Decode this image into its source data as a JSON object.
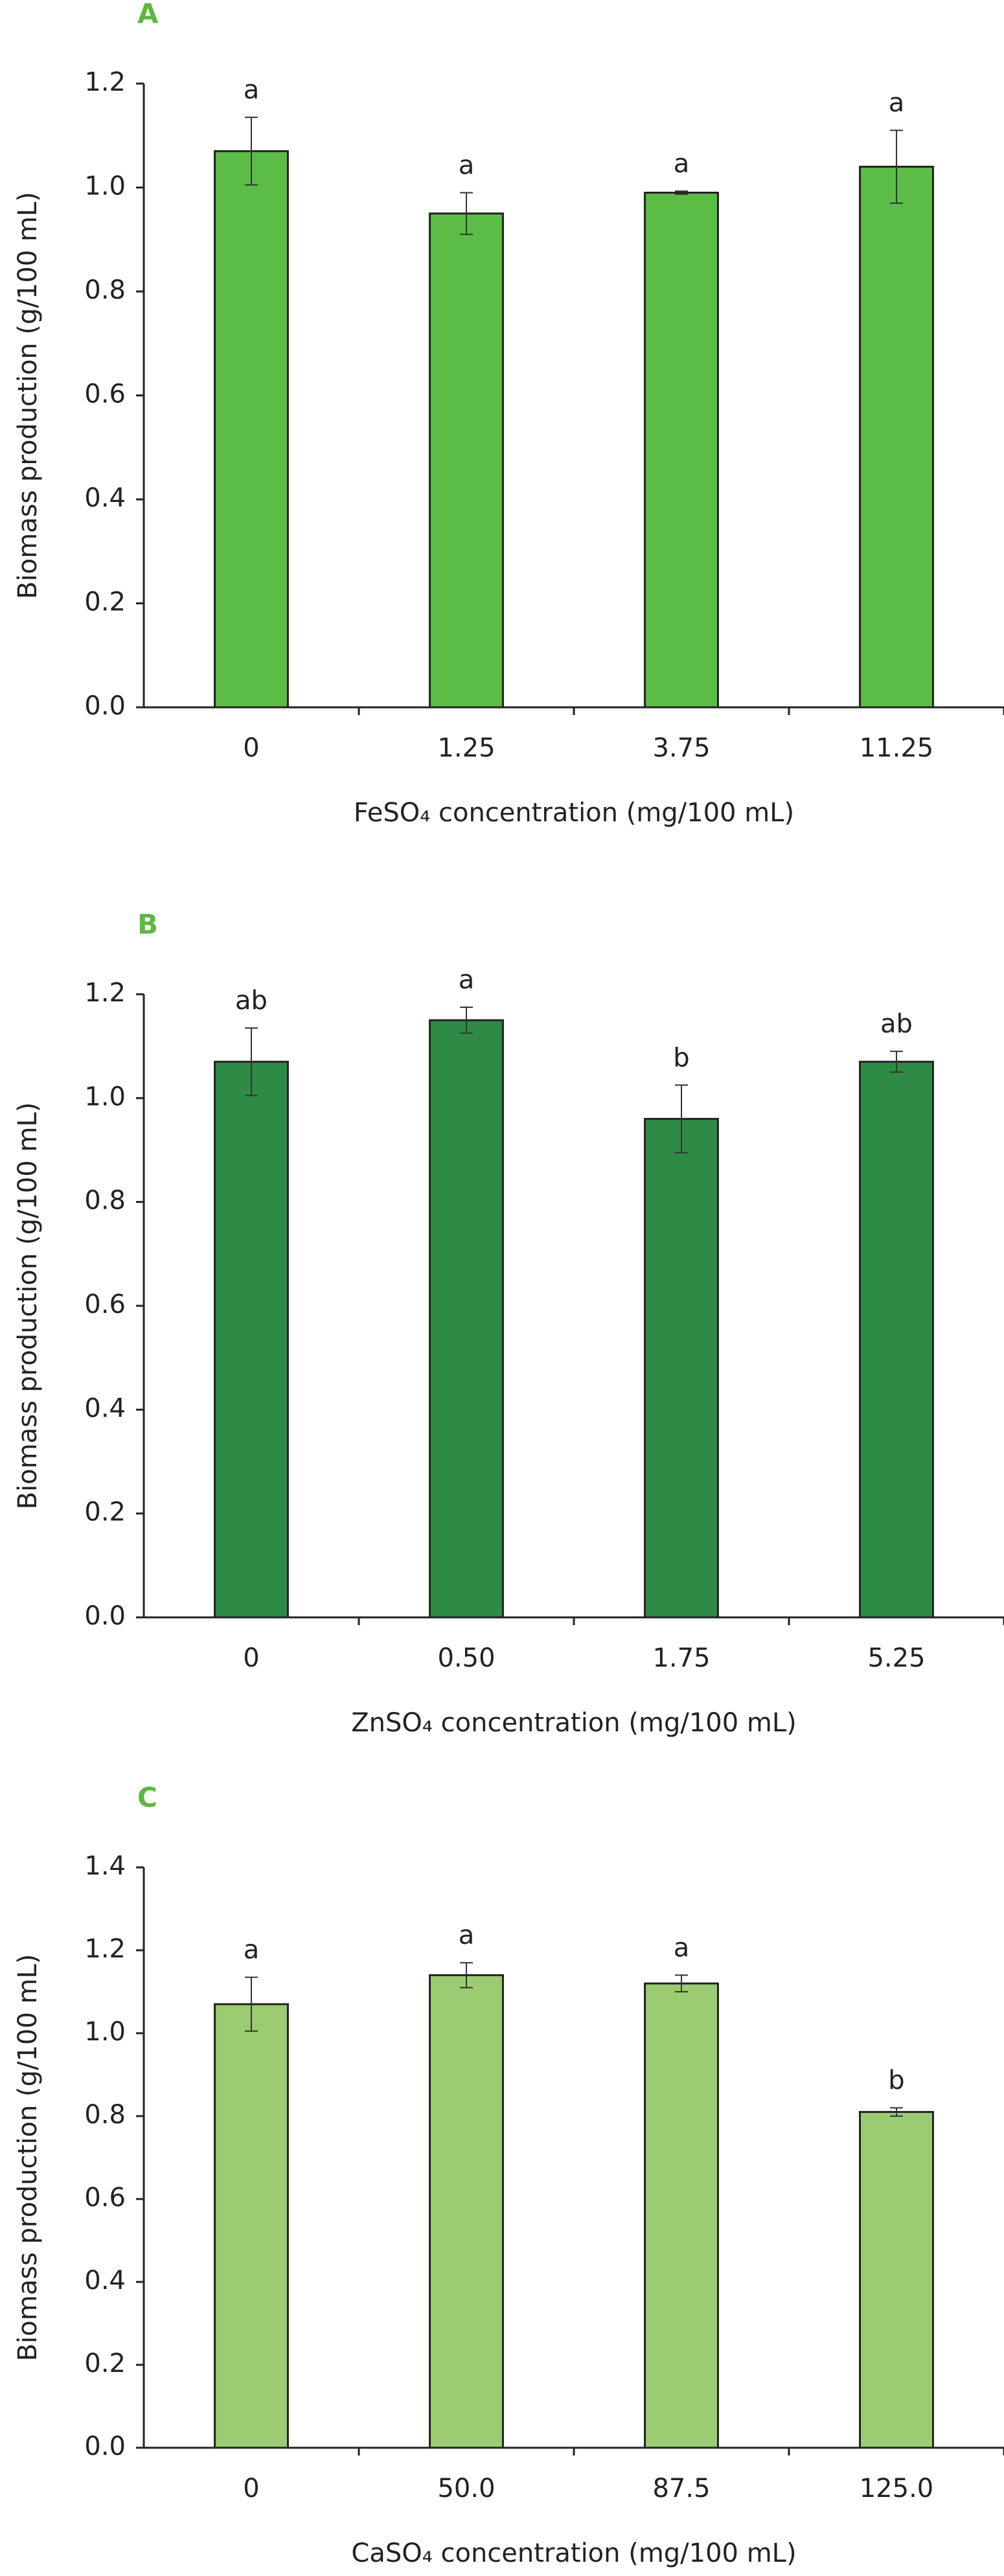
{
  "chart_data": [
    {
      "type": "bar",
      "panel": "A",
      "ylabel": "Biomass production (g/100 mL)",
      "xlabel": "FeSO₄ concentration (mg/100 mL)",
      "categories": [
        "0",
        "1.25",
        "3.75",
        "11.25"
      ],
      "values": [
        1.07,
        0.95,
        0.99,
        1.04
      ],
      "errors": [
        0.065,
        0.04,
        0.003,
        0.07
      ],
      "annotations": [
        "a",
        "a",
        "a",
        "a"
      ],
      "color": "#5bbd45",
      "ylim": [
        0,
        1.2
      ],
      "yticks": [
        {
          "value": 0,
          "label": "0.0"
        },
        0.2,
        0.4,
        0.6,
        0.8,
        {
          "value": 1,
          "label": "1.0"
        },
        1.2
      ]
    },
    {
      "type": "bar",
      "panel": "B",
      "ylabel": "Biomass production (g/100 mL)",
      "xlabel": "ZnSO₄ concentration (mg/100 mL)",
      "categories": [
        "0",
        "0.50",
        "1.75",
        "5.25"
      ],
      "values": [
        1.07,
        1.15,
        0.96,
        1.07
      ],
      "errors": [
        0.065,
        0.025,
        0.065,
        0.02
      ],
      "annotations": [
        "ab",
        "a",
        "b",
        "ab"
      ],
      "color": "#2e8b45",
      "ylim": [
        0,
        1.2
      ],
      "yticks": [
        {
          "value": 0,
          "label": "0.0"
        },
        0.2,
        0.4,
        0.6,
        0.8,
        {
          "value": 1,
          "label": "1.0"
        },
        1.2
      ]
    },
    {
      "type": "bar",
      "panel": "C",
      "ylabel": "Biomass production (g/100 mL)",
      "xlabel": "CaSO₄ concentration (mg/100 mL)",
      "categories": [
        "0",
        "50.0",
        "87.5",
        "125.0"
      ],
      "values": [
        1.07,
        1.14,
        1.12,
        0.81
      ],
      "errors": [
        0.065,
        0.03,
        0.02,
        0.01
      ],
      "annotations": [
        "a",
        "a",
        "a",
        "b"
      ],
      "color": "#9ccc72",
      "ylim": [
        0,
        1.4
      ],
      "yticks": [
        {
          "value": 0,
          "label": "0.0"
        },
        0.2,
        0.4,
        0.6,
        0.8,
        {
          "value": 1,
          "label": "1.0"
        },
        1.2,
        1.4
      ]
    }
  ]
}
